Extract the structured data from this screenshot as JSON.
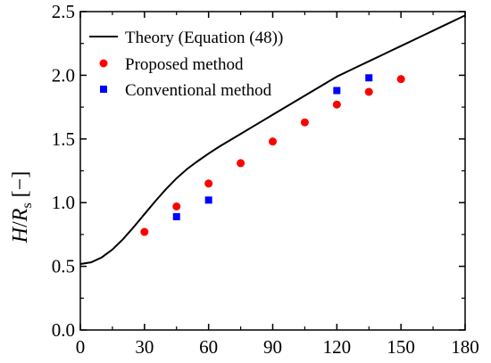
{
  "chart_data": {
    "type": "scatter",
    "title": "",
    "xlabel": "",
    "ylabel": {
      "prefix": "H",
      "slash": "/",
      "var": "R",
      "sub": "s",
      "unit": " [−]"
    },
    "xlim": [
      0,
      180
    ],
    "ylim": [
      0,
      2.5
    ],
    "xticks": [
      0,
      30,
      60,
      90,
      120,
      150,
      180
    ],
    "xtick_labels": [
      "0",
      "30",
      "60",
      "90",
      "120",
      "150",
      "180"
    ],
    "yticks": [
      0,
      0.5,
      1.0,
      1.5,
      2.0,
      2.5
    ],
    "ytick_labels": [
      "0.0",
      "0.5",
      "1.0",
      "1.5",
      "2.0",
      "2.5"
    ],
    "grid": false,
    "legend_position": "top-left",
    "series": [
      {
        "name": "Theory (Equation (48))",
        "kind": "line",
        "color": "#000000",
        "x": [
          0,
          5,
          10,
          15,
          20,
          25,
          30,
          35,
          40,
          45,
          50,
          55,
          60,
          65,
          70,
          75,
          80,
          85,
          90,
          95,
          100,
          105,
          110,
          115,
          120,
          125,
          130,
          135,
          140,
          145,
          150,
          155,
          160,
          165,
          170,
          175,
          180
        ],
        "y": [
          0.518,
          0.531,
          0.57,
          0.632,
          0.714,
          0.809,
          0.91,
          1.01,
          1.105,
          1.191,
          1.265,
          1.327,
          1.385,
          1.44,
          1.49,
          1.54,
          1.59,
          1.64,
          1.69,
          1.74,
          1.79,
          1.84,
          1.89,
          1.94,
          1.99,
          2.03,
          2.07,
          2.11,
          2.15,
          2.19,
          2.23,
          2.27,
          2.31,
          2.35,
          2.39,
          2.43,
          2.47
        ]
      },
      {
        "name": "Proposed method",
        "kind": "circle",
        "color": "#ff0000",
        "x": [
          30,
          45,
          60,
          75,
          90,
          105,
          120,
          135,
          150
        ],
        "y": [
          0.77,
          0.97,
          1.15,
          1.31,
          1.48,
          1.63,
          1.77,
          1.87,
          1.97
        ]
      },
      {
        "name": "Conventional method",
        "kind": "square",
        "color": "#0000ff",
        "x": [
          45,
          60,
          120,
          135
        ],
        "y": [
          0.89,
          1.02,
          1.88,
          1.98
        ]
      }
    ]
  }
}
